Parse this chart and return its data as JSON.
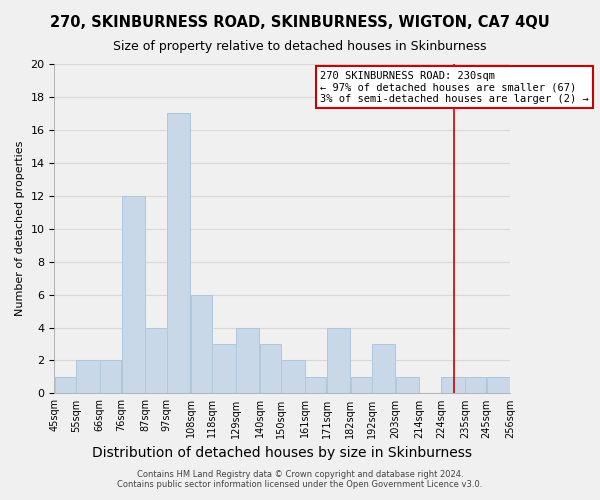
{
  "title": "270, SKINBURNESS ROAD, SKINBURNESS, WIGTON, CA7 4QU",
  "subtitle": "Size of property relative to detached houses in Skinburness",
  "xlabel": "Distribution of detached houses by size in Skinburness",
  "ylabel": "Number of detached properties",
  "bin_edges": [
    45,
    55,
    66,
    76,
    87,
    97,
    108,
    118,
    129,
    140,
    150,
    161,
    171,
    182,
    192,
    203,
    214,
    224,
    235,
    245,
    256
  ],
  "counts": [
    1,
    2,
    2,
    12,
    4,
    17,
    6,
    3,
    4,
    3,
    2,
    1,
    4,
    1,
    3,
    1,
    0,
    1,
    1,
    1
  ],
  "bar_color": "#c8d8e8",
  "bar_edge_color": "#b0c8dc",
  "reference_line_x": 230,
  "reference_line_color": "#cc0000",
  "annotation_box_text": "270 SKINBURNESS ROAD: 230sqm\n← 97% of detached houses are smaller (67)\n3% of semi-detached houses are larger (2) →",
  "annotation_box_color": "#cc0000",
  "annotation_box_fill": "#ffffff",
  "ylim": [
    0,
    20
  ],
  "tick_labels": [
    "45sqm",
    "55sqm",
    "66sqm",
    "76sqm",
    "87sqm",
    "97sqm",
    "108sqm",
    "118sqm",
    "129sqm",
    "140sqm",
    "150sqm",
    "161sqm",
    "171sqm",
    "182sqm",
    "192sqm",
    "203sqm",
    "214sqm",
    "224sqm",
    "235sqm",
    "245sqm",
    "256sqm"
  ],
  "footer_line1": "Contains HM Land Registry data © Crown copyright and database right 2024.",
  "footer_line2": "Contains public sector information licensed under the Open Government Licence v3.0.",
  "grid_color": "#d8d8d8",
  "background_color": "#f0f0f0",
  "title_fontsize": 10.5,
  "subtitle_fontsize": 9,
  "ylabel_fontsize": 8,
  "xlabel_fontsize": 10
}
